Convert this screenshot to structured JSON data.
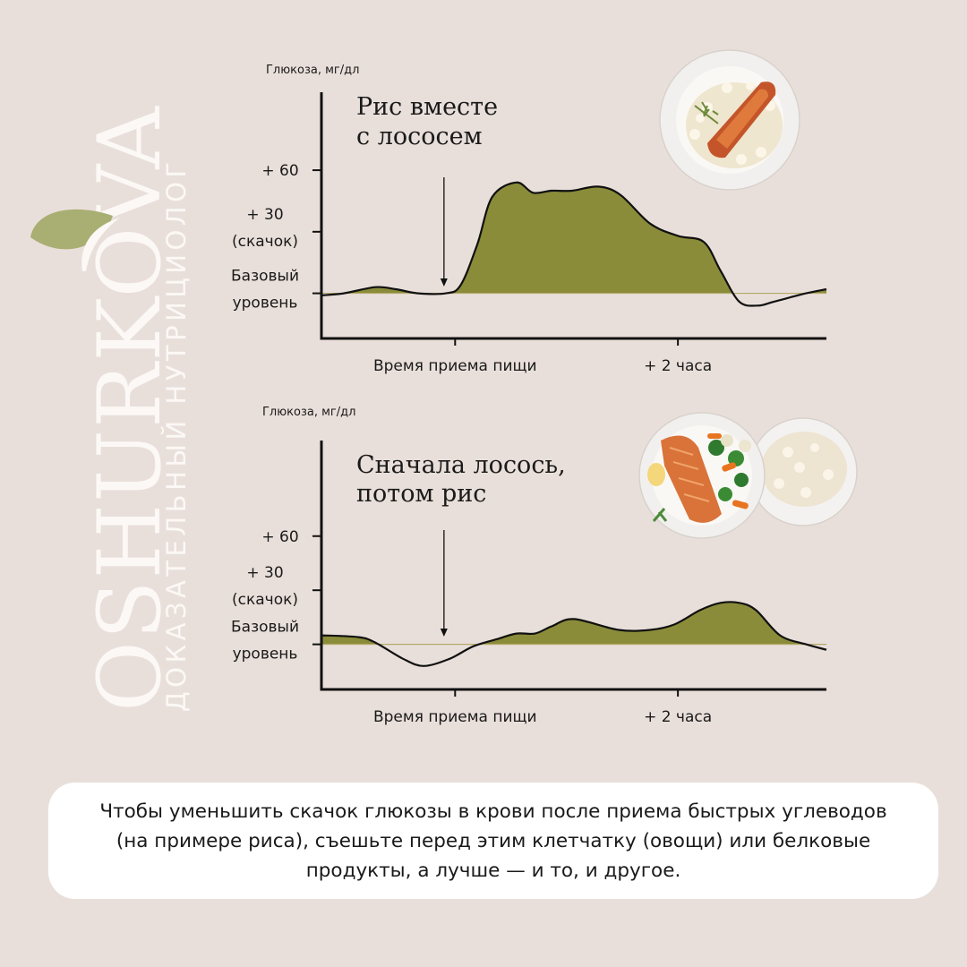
{
  "brand": {
    "name": "OSHURKOVA",
    "tagline": "ДОКАЗАТЕЛЬНЫЙ НУТРИЦИОЛОГ",
    "colors": {
      "accent": "#8a8c3a",
      "leaf": "#a9ae72",
      "text_light": "#fbf8f6",
      "background": "#e9dfda"
    }
  },
  "chart_data": [
    {
      "type": "area",
      "title": "Рис вместе с лососем",
      "title_lines": [
        "Рис вместе",
        "с лососем"
      ],
      "ylabel": "Глюкоза, мг/дл",
      "y_ticks": [
        {
          "value": 60,
          "label": [
            "+ 60"
          ]
        },
        {
          "value": 30,
          "label": [
            "+ 30",
            "(скачок)"
          ]
        },
        {
          "value": 0,
          "label": [
            "Базовый",
            "уровень"
          ]
        }
      ],
      "x_ticks": [
        {
          "value": 0,
          "label": "Время приема пищи"
        },
        {
          "value": 120,
          "label": "+ 2 часа"
        }
      ],
      "xlim": [
        -72,
        200
      ],
      "ylim": [
        -22,
        98
      ],
      "marker_x": -6,
      "series": [
        {
          "x": [
            -72,
            -60,
            -43,
            -32,
            -20,
            -5,
            3,
            12,
            20,
            33,
            42,
            52,
            63,
            77,
            89,
            105,
            120,
            134,
            143,
            153,
            163,
            172,
            189,
            200
          ],
          "y": [
            -1,
            0,
            3,
            2,
            0,
            0,
            4,
            24,
            47,
            54,
            49,
            50,
            50,
            52,
            48,
            34,
            28,
            25,
            11,
            -4,
            -6,
            -4,
            0,
            2
          ]
        }
      ],
      "food": "plate-rice-salmon-icon"
    },
    {
      "type": "area",
      "title": "Сначала лосось, потом рис",
      "title_lines": [
        "Сначала лосось,",
        "потом рис"
      ],
      "ylabel": "Глюкоза, мг/дл",
      "y_ticks": [
        {
          "value": 60,
          "label": [
            "+ 60"
          ]
        },
        {
          "value": 30,
          "label": [
            "+ 30",
            "(скачок)"
          ]
        },
        {
          "value": 0,
          "label": [
            "Базовый",
            "уровень"
          ]
        }
      ],
      "x_ticks": [
        {
          "value": 0,
          "label": "Время приема пищи"
        },
        {
          "value": 120,
          "label": "+ 2 часа"
        }
      ],
      "xlim": [
        -72,
        200
      ],
      "ylim": [
        -25,
        113
      ],
      "marker_x": -6,
      "series": [
        {
          "x": [
            -72,
            -52,
            -43,
            -28,
            -17,
            -3,
            10,
            23,
            33,
            43,
            52,
            64,
            88,
            105,
            118,
            132,
            143,
            153,
            162,
            175,
            189,
            200
          ],
          "y": [
            5,
            4,
            1,
            -8,
            -12,
            -8,
            -1,
            3,
            6,
            6,
            10,
            14,
            8,
            8,
            11,
            19,
            23,
            23,
            19,
            5,
            0,
            -3
          ]
        }
      ],
      "food": "plate-salmon-vegetables-and-rice-bowl-icon"
    }
  ],
  "note": {
    "text": "Чтобы уменьшить скачок глюкозы в крови после приема быстрых углеводов (на примере риса), съешьте перед этим клетчатку (овощи) или белковые продукты, а лучше — и то, и другое."
  }
}
